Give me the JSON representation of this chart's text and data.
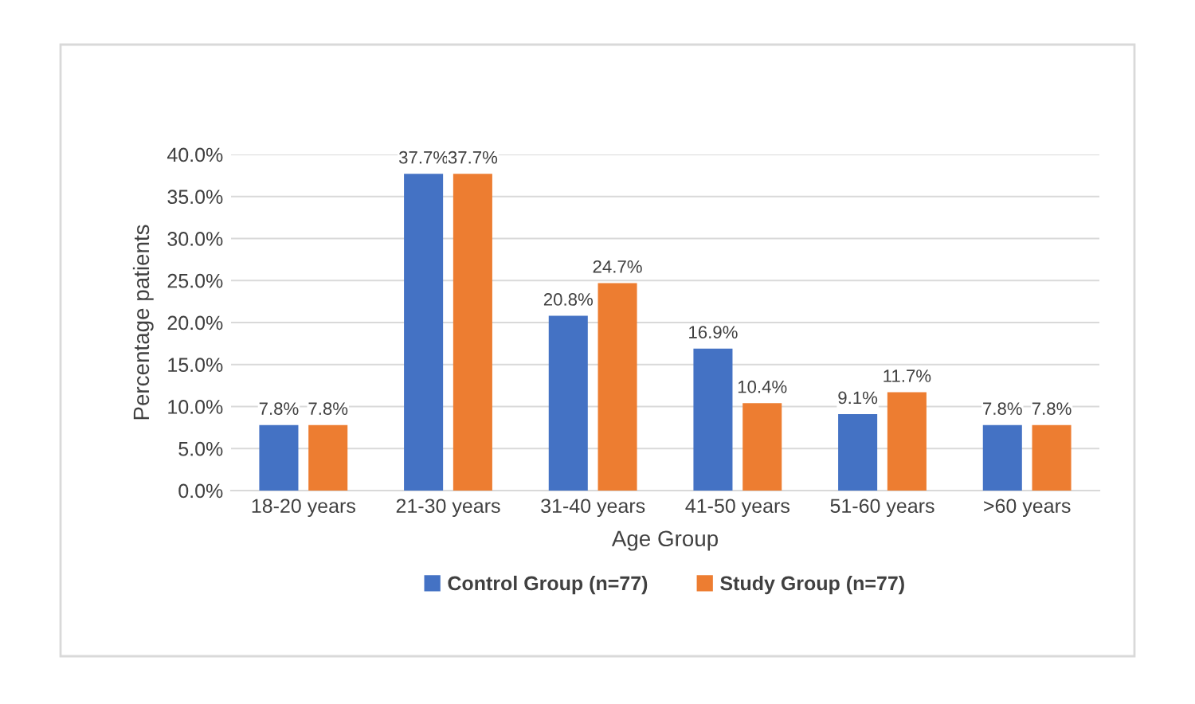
{
  "chart_data": {
    "type": "bar",
    "xlabel": "Age Group",
    "ylabel": "Percentage patients",
    "categories": [
      "18-20 years",
      "21-30 years",
      "31-40 years",
      "41-50 years",
      "51-60 years",
      ">60 years"
    ],
    "series": [
      {
        "name": "Control Group (n=77)",
        "color": "#4472c4",
        "values": [
          7.8,
          37.7,
          20.8,
          16.9,
          9.1,
          7.8
        ],
        "value_labels": [
          "7.8%",
          "37.7%",
          "20.8%",
          "16.9%",
          "9.1%",
          "7.8%"
        ]
      },
      {
        "name": "Study Group (n=77)",
        "color": "#ed7d31",
        "values": [
          7.8,
          37.7,
          24.7,
          10.4,
          11.7,
          7.8
        ],
        "value_labels": [
          "7.8%",
          "37.7%",
          "24.7%",
          "10.4%",
          "11.7%",
          "7.8%"
        ]
      }
    ],
    "ylim": [
      0,
      40
    ],
    "yticks": [
      {
        "value": 0,
        "label": "0.0%"
      },
      {
        "value": 5,
        "label": "5.0%"
      },
      {
        "value": 10,
        "label": "10.0%"
      },
      {
        "value": 15,
        "label": "15.0%"
      },
      {
        "value": 20,
        "label": "20.0%"
      },
      {
        "value": 25,
        "label": "25.0%"
      },
      {
        "value": 30,
        "label": "30.0%"
      },
      {
        "value": 35,
        "label": "35.0%"
      },
      {
        "value": 40,
        "label": "40.0%"
      }
    ],
    "grid": "y",
    "legend": "bottom"
  }
}
